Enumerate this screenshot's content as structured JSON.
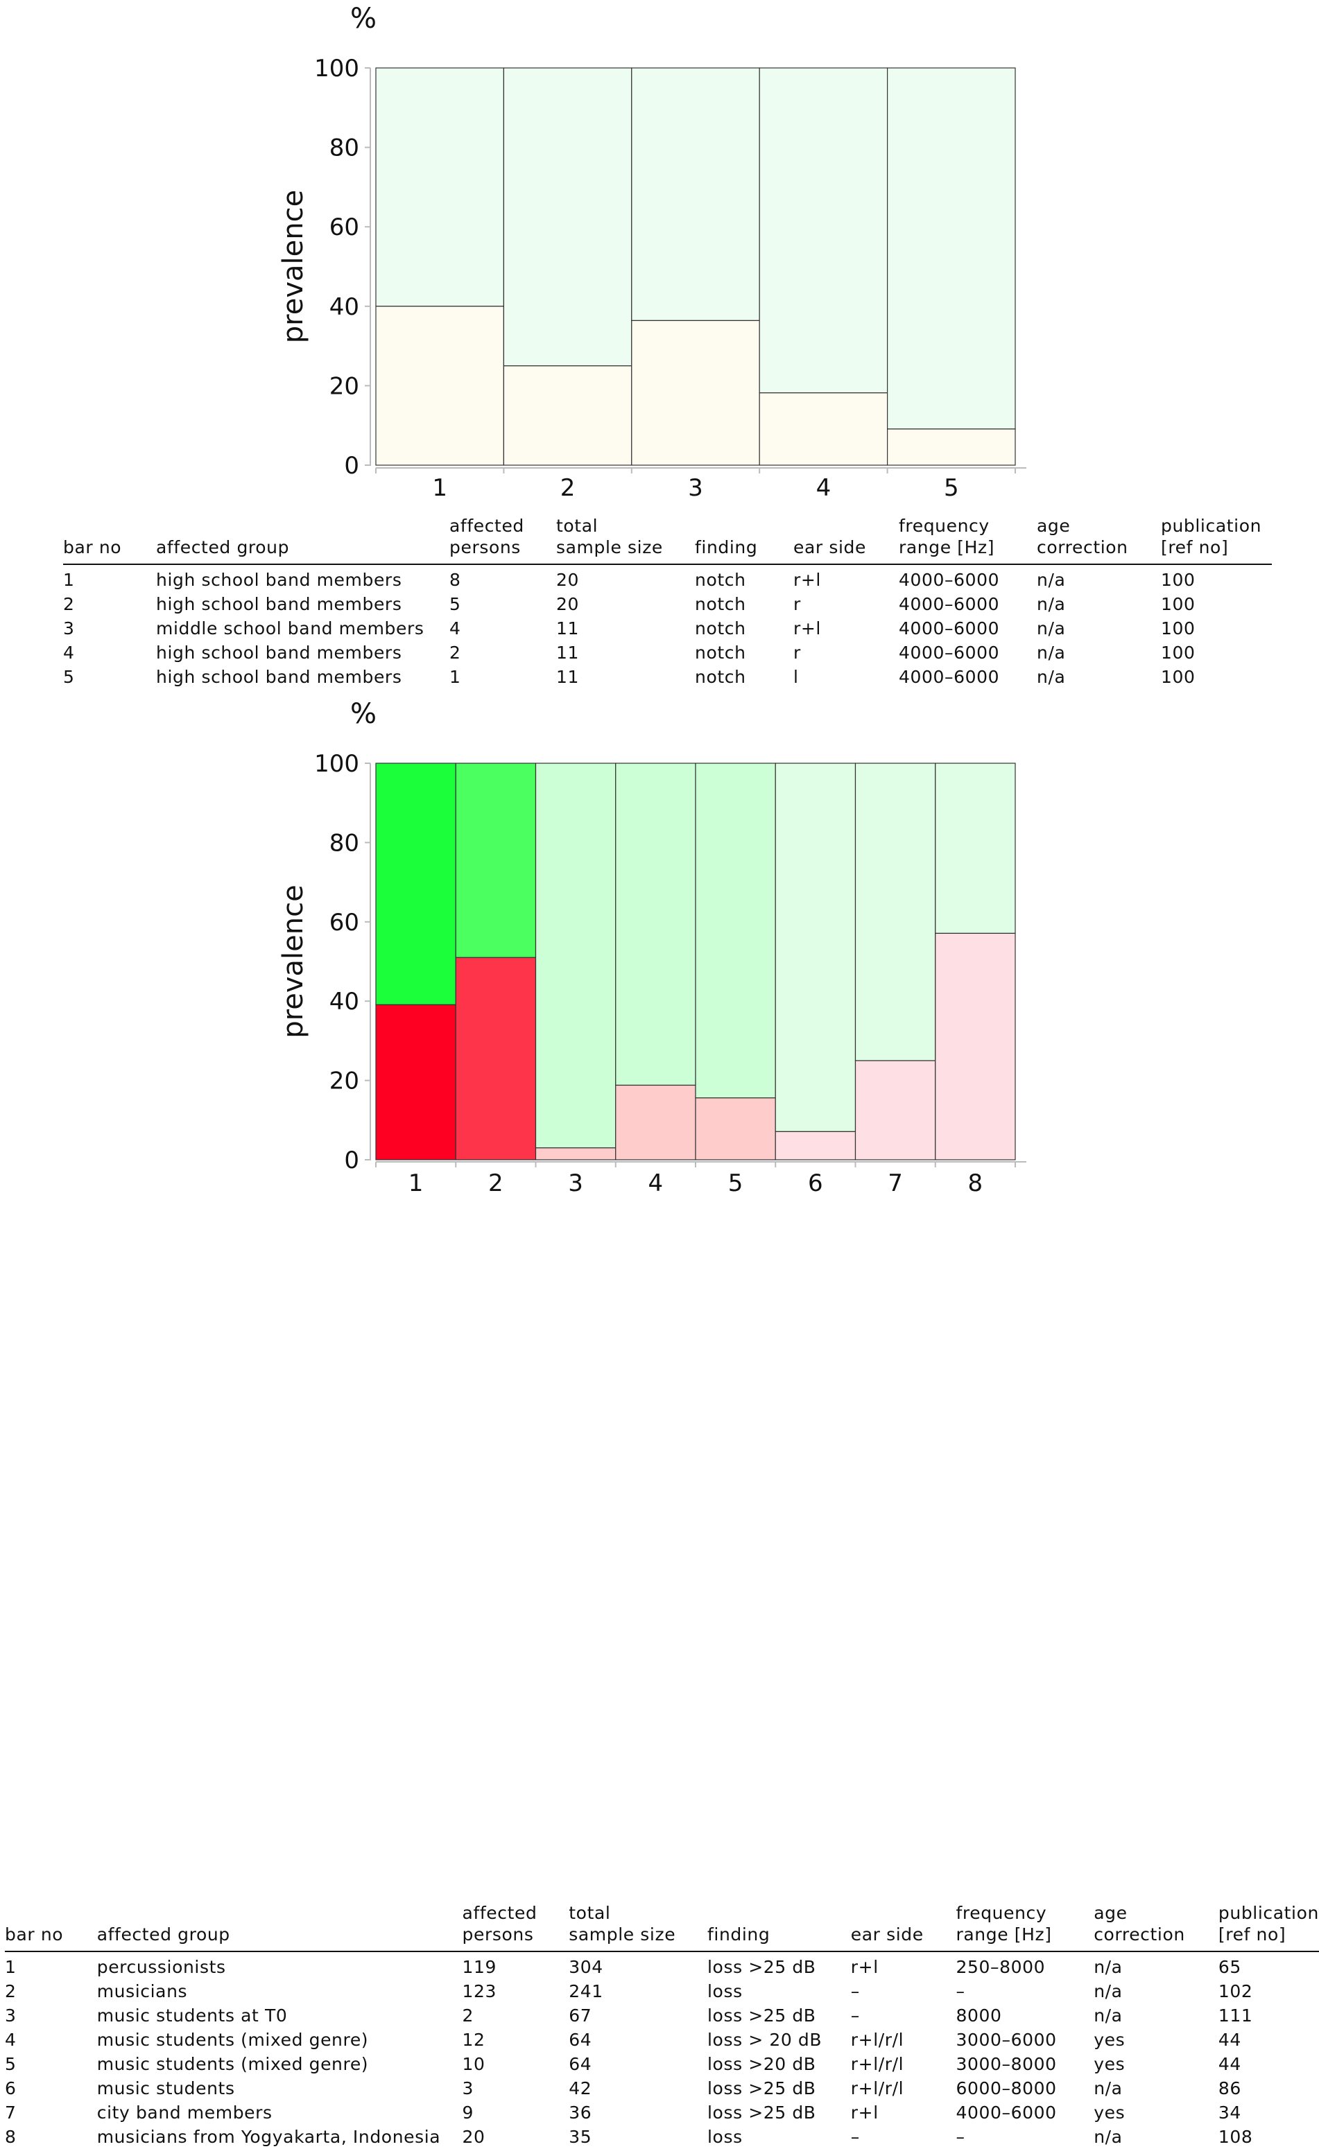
{
  "chart_data": [
    {
      "type": "bar",
      "y_unit": "%",
      "ylabel": "prevalence",
      "ylim": [
        0,
        100
      ],
      "yticks": [
        "0",
        "20",
        "40",
        "60",
        "80",
        "100"
      ],
      "categories": [
        "1",
        "2",
        "3",
        "4",
        "5"
      ],
      "values": [
        40,
        25,
        36.4,
        18.2,
        9.1
      ],
      "colors": {
        "affected": [
          "#fefcf0",
          "#fefcf0",
          "#fefcf0",
          "#fefcf0",
          "#fefcf0"
        ],
        "unaffected": [
          "#eefdf1",
          "#eefdf1",
          "#eefdf1",
          "#eefdf1",
          "#eefdf1"
        ]
      },
      "grid": false,
      "table": {
        "headers": [
          [
            "",
            "bar no"
          ],
          [
            "",
            "affected group"
          ],
          [
            "affected",
            "persons"
          ],
          [
            "total",
            "sample size"
          ],
          [
            "",
            "finding"
          ],
          [
            "",
            "ear side"
          ],
          [
            "frequency",
            "range [Hz]"
          ],
          [
            "age",
            "correction"
          ],
          [
            "publication",
            "[ref no]"
          ]
        ],
        "rows": [
          [
            "1",
            "high school band members",
            "8",
            "20",
            "notch",
            "r+l",
            "4000–6000",
            "n/a",
            "100"
          ],
          [
            "2",
            "high school band members",
            "5",
            "20",
            "notch",
            "r",
            "4000–6000",
            "n/a",
            "100"
          ],
          [
            "3",
            "middle school band members",
            "4",
            "11",
            "notch",
            "r+l",
            "4000–6000",
            "n/a",
            "100"
          ],
          [
            "4",
            "high school band members",
            "2",
            "11",
            "notch",
            "r",
            "4000–6000",
            "n/a",
            "100"
          ],
          [
            "5",
            "high school band members",
            "1",
            "11",
            "notch",
            "l",
            "4000–6000",
            "n/a",
            "100"
          ]
        ]
      }
    },
    {
      "type": "bar",
      "y_unit": "%",
      "ylabel": "prevalence",
      "ylim": [
        0,
        100
      ],
      "yticks": [
        "0",
        "20",
        "40",
        "60",
        "80",
        "100"
      ],
      "categories": [
        "1",
        "2",
        "3",
        "4",
        "5",
        "6",
        "7",
        "8"
      ],
      "values": [
        39.1,
        51.0,
        3.0,
        18.8,
        15.6,
        7.1,
        25.0,
        57.1
      ],
      "colors": {
        "affected": [
          "#fe0022",
          "#fe344a",
          "#ffcccc",
          "#ffcccc",
          "#ffcccc",
          "#fedfe3",
          "#fedfe3",
          "#fedfe3"
        ],
        "unaffected": [
          "#1aff3a",
          "#4cff60",
          "#ccffd5",
          "#ccffd5",
          "#ccffd5",
          "#dffee5",
          "#dffee5",
          "#dffee5"
        ]
      },
      "grid": false,
      "table": {
        "headers": [
          [
            "",
            "bar no"
          ],
          [
            "",
            "affected group"
          ],
          [
            "affected",
            "persons"
          ],
          [
            "total",
            "sample size"
          ],
          [
            "",
            "finding"
          ],
          [
            "",
            "ear side"
          ],
          [
            "frequency",
            "range [Hz]"
          ],
          [
            "age",
            "correction"
          ],
          [
            "publication",
            "[ref no]"
          ]
        ],
        "rows": [
          [
            "1",
            "percussionists",
            "119",
            "304",
            "loss >25 dB",
            "r+l",
            "250–8000",
            "n/a",
            "65"
          ],
          [
            "2",
            "musicians",
            "123",
            "241",
            "loss",
            "–",
            "–",
            "n/a",
            "102"
          ],
          [
            "3",
            "music students at T0",
            "2",
            "67",
            "loss >25 dB",
            "–",
            "8000",
            "n/a",
            "111"
          ],
          [
            "4",
            "music students (mixed genre)",
            "12",
            "64",
            "loss > 20 dB",
            "r+l/r/l",
            "3000–6000",
            "yes",
            "44"
          ],
          [
            "5",
            "music students (mixed genre)",
            "10",
            "64",
            "loss >20 dB",
            "r+l/r/l",
            "3000–8000",
            "yes",
            "44"
          ],
          [
            "6",
            "music students",
            "3",
            "42",
            "loss >25 dB",
            "r+l/r/l",
            "6000–8000",
            "n/a",
            "86"
          ],
          [
            "7",
            "city band members",
            "9",
            "36",
            "loss >25 dB",
            "r+l",
            "4000–6000",
            "yes",
            "34"
          ],
          [
            "8",
            "musicians from Yogyakarta, Indonesia",
            "20",
            "35",
            "loss",
            "–",
            "–",
            "n/a",
            "108"
          ]
        ]
      }
    }
  ]
}
